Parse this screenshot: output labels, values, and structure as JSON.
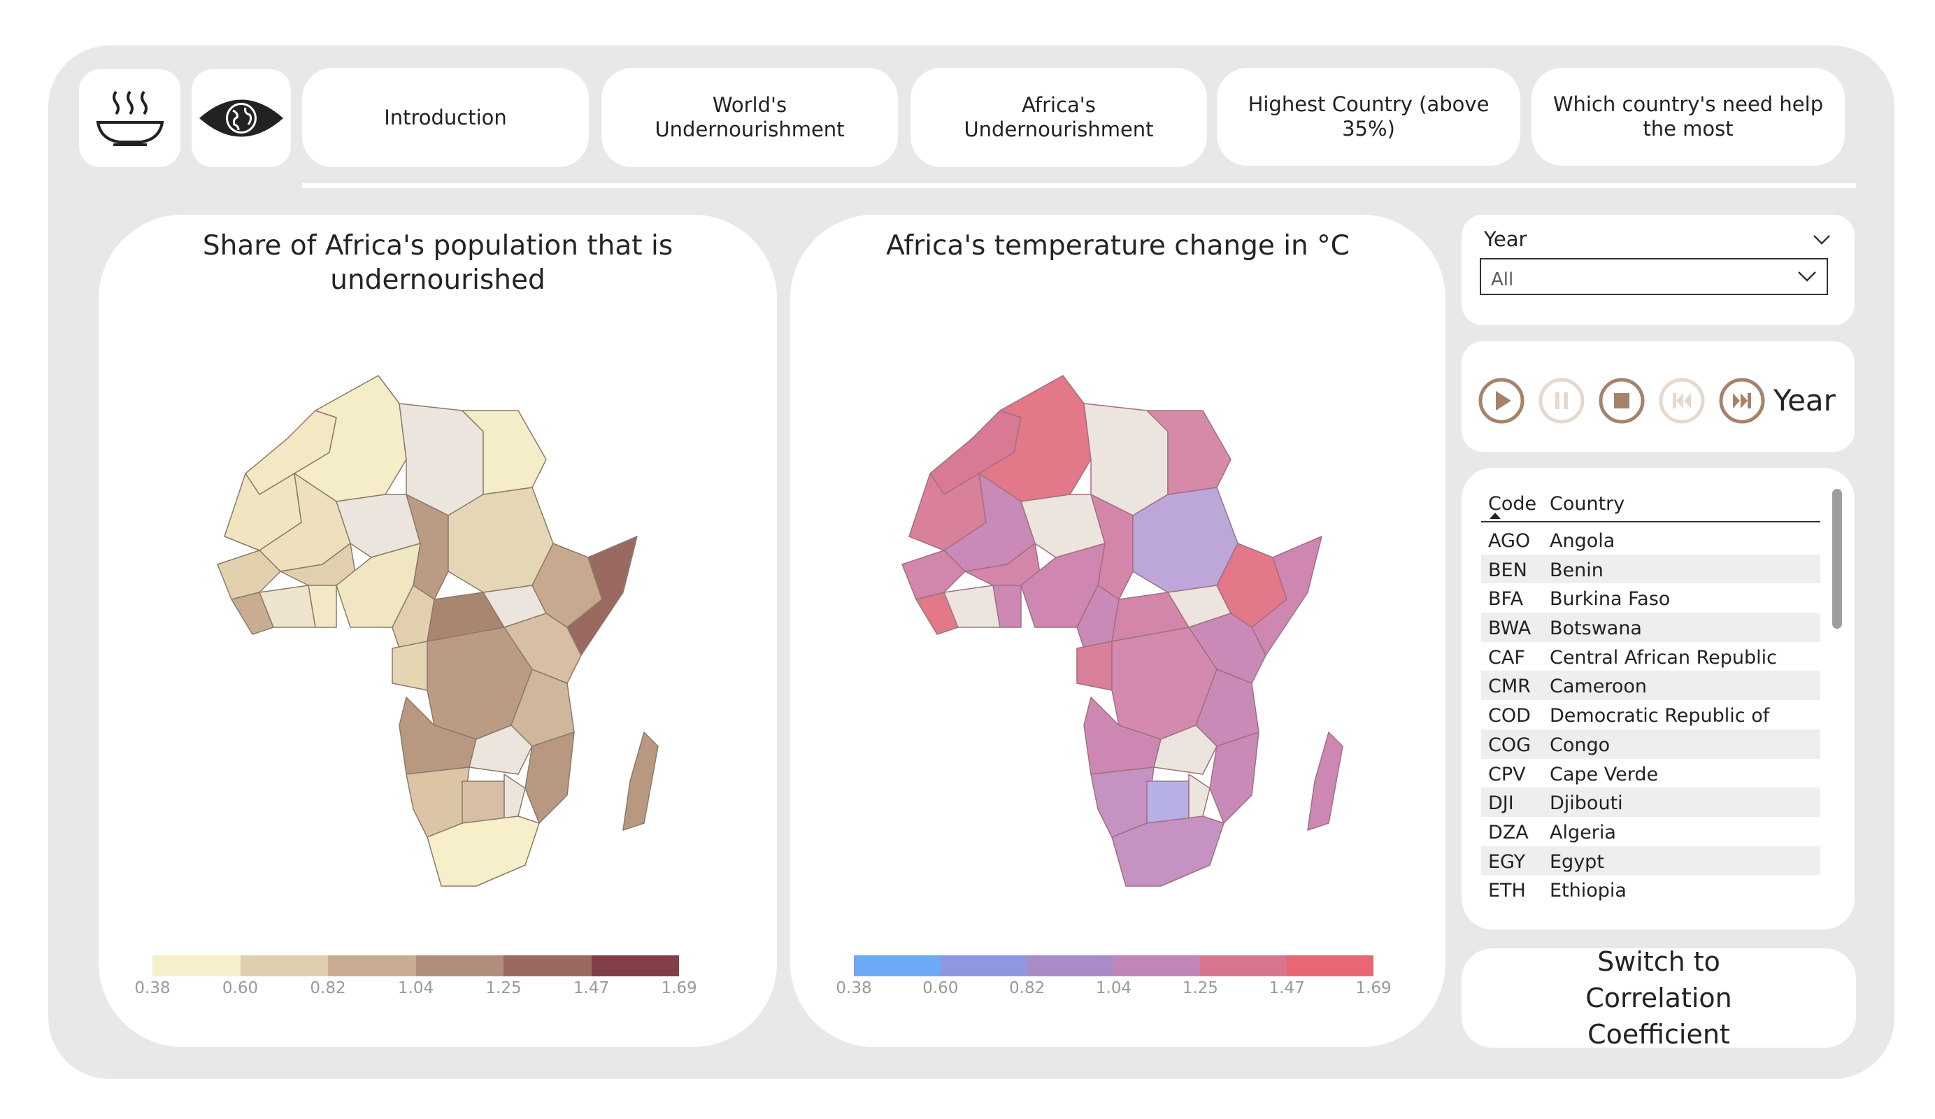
{
  "nav": {
    "buttons": [
      {
        "label": "Introduction"
      },
      {
        "label": "World's Undernourishment"
      },
      {
        "label": "Africa's Undernourishment"
      },
      {
        "label": "Highest Country (above 35%)"
      },
      {
        "label": "Which country's need help the most"
      }
    ]
  },
  "map_left": {
    "title": "Share of Africa's population that is undernourished",
    "legend_colors": [
      "#f6efc9",
      "#dfcfaf",
      "#c9ad92",
      "#b28d7b",
      "#9a6a61",
      "#833f47"
    ],
    "ticks": [
      "0.38",
      "0.60",
      "0.82",
      "1.04",
      "1.25",
      "1.47",
      "1.69"
    ]
  },
  "map_right": {
    "title": "Africa's temperature change in °C",
    "legend_colors": [
      "#6daaf5",
      "#8e97df",
      "#a98cc7",
      "#c285b8",
      "#d7758f",
      "#e96674"
    ],
    "ticks": [
      "0.38",
      "0.60",
      "0.82",
      "1.04",
      "1.25",
      "1.47",
      "1.69"
    ]
  },
  "year_slicer": {
    "title": "Year",
    "value": "All"
  },
  "play_axis": {
    "label": "Year"
  },
  "table": {
    "headers": {
      "code": "Code",
      "country": "Country"
    },
    "rows": [
      {
        "code": "AGO",
        "country": "Angola"
      },
      {
        "code": "BEN",
        "country": "Benin"
      },
      {
        "code": "BFA",
        "country": "Burkina Faso"
      },
      {
        "code": "BWA",
        "country": "Botswana"
      },
      {
        "code": "CAF",
        "country": "Central African Republic"
      },
      {
        "code": "CMR",
        "country": "Cameroon"
      },
      {
        "code": "COD",
        "country": "Democratic Republic of Congo"
      },
      {
        "code": "COG",
        "country": "Congo"
      },
      {
        "code": "CPV",
        "country": "Cape Verde"
      },
      {
        "code": "DJI",
        "country": "Djibouti"
      },
      {
        "code": "DZA",
        "country": "Algeria"
      },
      {
        "code": "EGY",
        "country": "Egypt"
      },
      {
        "code": "ETH",
        "country": "Ethiopia"
      }
    ]
  },
  "switch_button": {
    "label": "Switch to Correlation Coefficient"
  },
  "colors": {
    "frame": "#e8e8e8",
    "accent_brown": "#a5836a"
  }
}
